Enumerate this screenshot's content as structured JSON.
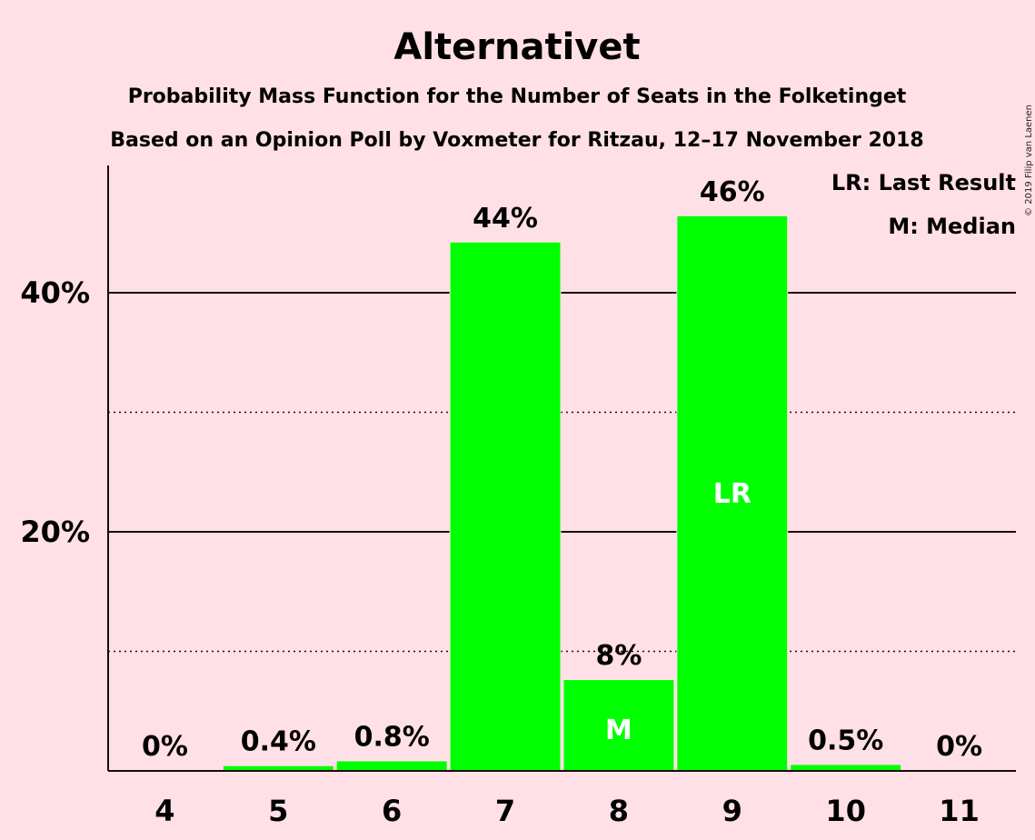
{
  "chart_data": {
    "type": "bar",
    "title": "Alternativet",
    "subtitle": "Probability Mass Function for the Number of Seats in the Folketinget",
    "subtitle2": "Based on an Opinion Poll by Voxmeter for Ritzau, 12–17 November 2018",
    "copyright": "© 2019 Filip van Laenen",
    "xlabel": "",
    "ylabel": "",
    "categories": [
      "4",
      "5",
      "6",
      "7",
      "8",
      "9",
      "10",
      "11"
    ],
    "values": [
      0,
      0.4,
      0.8,
      44.2,
      7.6,
      46.4,
      0.5,
      0
    ],
    "data_labels": [
      "0%",
      "0.4%",
      "0.8%",
      "44%",
      "8%",
      "46%",
      "0.5%",
      "0%"
    ],
    "bar_markers": [
      "",
      "",
      "",
      "",
      "M",
      "LR",
      "",
      ""
    ],
    "ylim": [
      0,
      50
    ],
    "y_major_ticks": [
      20,
      40
    ],
    "y_major_tick_labels": [
      "20%",
      "40%"
    ],
    "y_minor_gridlines": [
      10,
      30
    ],
    "legend": [
      "LR: Last Result",
      "M: Median"
    ],
    "legend_position": "top-right",
    "bar_color": "#00FF00",
    "background_color": "#FFE0E6"
  }
}
